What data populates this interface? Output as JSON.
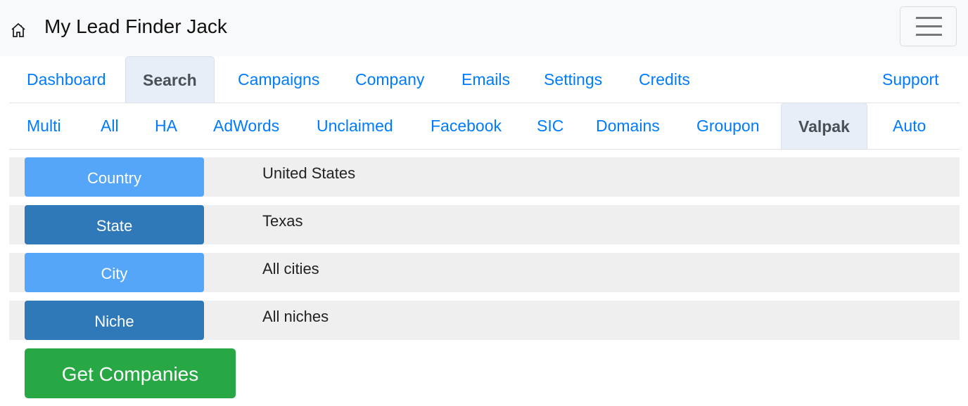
{
  "header": {
    "title": "My Lead Finder Jack",
    "home_icon": "home-icon",
    "menu_icon": "hamburger-menu-icon"
  },
  "main_tabs": [
    {
      "label": "Dashboard"
    },
    {
      "label": "Search",
      "active": true
    },
    {
      "label": "Campaigns"
    },
    {
      "label": "Company"
    },
    {
      "label": "Emails"
    },
    {
      "label": "Settings"
    },
    {
      "label": "Credits"
    },
    {
      "label": "Support"
    }
  ],
  "sub_tabs": [
    {
      "label": "Multi"
    },
    {
      "label": "All"
    },
    {
      "label": "HA"
    },
    {
      "label": "AdWords"
    },
    {
      "label": "Unclaimed"
    },
    {
      "label": "Facebook"
    },
    {
      "label": "SIC"
    },
    {
      "label": "Domains"
    },
    {
      "label": "Groupon"
    },
    {
      "label": "Valpak",
      "active": true
    },
    {
      "label": "Auto"
    }
  ],
  "filters": [
    {
      "label": "Country",
      "value": "United States"
    },
    {
      "label": "State",
      "value": "Texas"
    },
    {
      "label": "City",
      "value": "All cities"
    },
    {
      "label": "Niche",
      "value": "All niches"
    }
  ],
  "submit_label": "Get Companies",
  "colors": {
    "link": "#007bff",
    "button_light": "#55a5f8",
    "button_dark": "#3079b9",
    "submit": "#28a745"
  }
}
